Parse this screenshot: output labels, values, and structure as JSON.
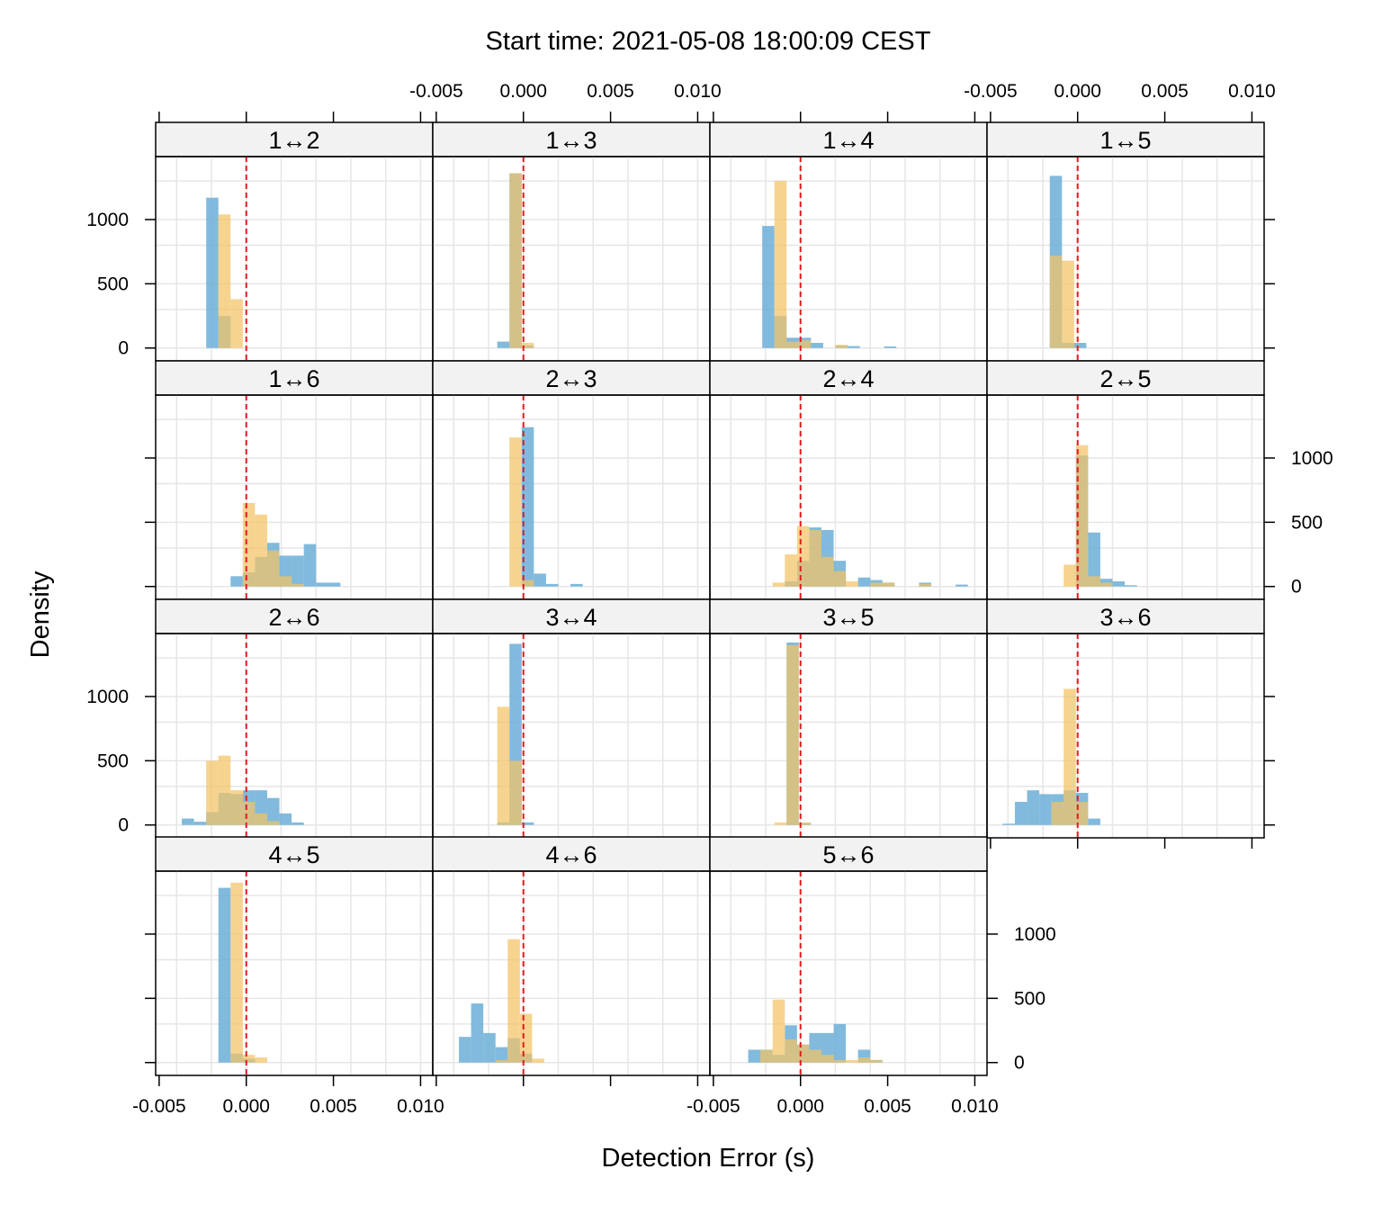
{
  "chart_data": {
    "type": "histogram-trellis",
    "title": "Start time: 2021-05-08 18:00:09 CEST",
    "xlabel": "Detection Error (s)",
    "ylabel": "Density",
    "xlim": [
      -0.0052,
      0.0107
    ],
    "ylim": [
      -100,
      1490
    ],
    "x_ticks": [
      -0.005,
      0.0,
      0.005,
      0.01
    ],
    "x_tick_labels": [
      "-0.005",
      "0.000",
      "0.005",
      "0.010"
    ],
    "y_ticks": [
      0,
      500,
      1000
    ],
    "y_tick_labels": [
      "0",
      "500",
      "1000"
    ],
    "x_grid": [
      -0.004,
      -0.002,
      0.0,
      0.002,
      0.004,
      0.006,
      0.008,
      0.01
    ],
    "y_grid": [
      0,
      300,
      500,
      800,
      1000,
      1300
    ],
    "reference_line_x": 0.0,
    "grid": true,
    "colors": {
      "series_a": "#6baed6",
      "series_b": "#f3c365",
      "reference_line": "#e41a1c",
      "grid": "#e6e6e6",
      "strip_bg": "#f2f2f2"
    },
    "panels": [
      {
        "label": "1↔2",
        "binwidth": 0.0007,
        "a": [
          [
            -0.0023,
            1170
          ],
          [
            -0.0016,
            250
          ]
        ],
        "b": [
          [
            -0.0016,
            1040
          ],
          [
            -0.0009,
            380
          ]
        ]
      },
      {
        "label": "1↔3",
        "binwidth": 0.0007,
        "a": [
          [
            -0.0015,
            50
          ],
          [
            -0.0008,
            1360
          ],
          [
            -0.0001,
            20
          ]
        ],
        "b": [
          [
            -0.0008,
            1360
          ],
          [
            -0.0001,
            40
          ]
        ]
      },
      {
        "label": "1↔4",
        "binwidth": 0.0007,
        "a": [
          [
            -0.0022,
            950
          ],
          [
            -0.0015,
            250
          ],
          [
            -0.0008,
            80
          ],
          [
            -0.0001,
            80
          ],
          [
            0.0006,
            40
          ],
          [
            0.002,
            20
          ],
          [
            0.0027,
            15
          ],
          [
            0.0048,
            12
          ]
        ],
        "b": [
          [
            -0.0015,
            1300
          ],
          [
            -0.0008,
            50
          ],
          [
            -0.0001,
            60
          ],
          [
            0.002,
            25
          ]
        ]
      },
      {
        "label": "1↔5",
        "binwidth": 0.0007,
        "a": [
          [
            -0.0016,
            1340
          ],
          [
            -0.0009,
            40
          ],
          [
            -0.0002,
            40
          ]
        ],
        "b": [
          [
            -0.0016,
            720
          ],
          [
            -0.0009,
            680
          ]
        ]
      },
      {
        "label": "1↔6",
        "binwidth": 0.0007,
        "a": [
          [
            -0.0009,
            80
          ],
          [
            -0.0002,
            110
          ],
          [
            0.0005,
            230
          ],
          [
            0.0012,
            340
          ],
          [
            0.0019,
            240
          ],
          [
            0.0026,
            240
          ],
          [
            0.0033,
            330
          ],
          [
            0.004,
            30
          ],
          [
            0.0047,
            30
          ]
        ],
        "b": [
          [
            -0.0002,
            650
          ],
          [
            0.0005,
            560
          ],
          [
            0.0012,
            280
          ],
          [
            0.0019,
            80
          ],
          [
            0.0026,
            20
          ]
        ]
      },
      {
        "label": "2↔3",
        "binwidth": 0.0007,
        "a": [
          [
            -0.0001,
            1240
          ],
          [
            0.0006,
            100
          ],
          [
            0.0013,
            20
          ],
          [
            0.0027,
            20
          ]
        ],
        "b": [
          [
            -0.0008,
            1160
          ],
          [
            -0.0001,
            50
          ]
        ]
      },
      {
        "label": "2↔4",
        "binwidth": 0.0007,
        "a": [
          [
            -0.0009,
            40
          ],
          [
            -0.0002,
            200
          ],
          [
            0.0005,
            460
          ],
          [
            0.0012,
            440
          ],
          [
            0.0019,
            200
          ],
          [
            0.0033,
            70
          ],
          [
            0.004,
            50
          ],
          [
            0.0047,
            30
          ],
          [
            0.0068,
            30
          ],
          [
            0.0089,
            15
          ]
        ],
        "b": [
          [
            -0.0016,
            30
          ],
          [
            -0.0009,
            250
          ],
          [
            -0.0002,
            470
          ],
          [
            0.0005,
            440
          ],
          [
            0.0012,
            230
          ],
          [
            0.0019,
            120
          ],
          [
            0.0026,
            40
          ],
          [
            0.004,
            30
          ],
          [
            0.0047,
            30
          ],
          [
            0.0068,
            20
          ]
        ]
      },
      {
        "label": "2↔5",
        "binwidth": 0.0007,
        "a": [
          [
            -0.0001,
            1020
          ],
          [
            0.0006,
            420
          ],
          [
            0.0013,
            60
          ],
          [
            0.002,
            40
          ],
          [
            0.0027,
            10
          ]
        ],
        "b": [
          [
            -0.0008,
            170
          ],
          [
            -0.0001,
            1100
          ],
          [
            0.0006,
            80
          ],
          [
            0.0013,
            30
          ]
        ]
      },
      {
        "label": "2↔6",
        "binwidth": 0.0007,
        "a": [
          [
            -0.0037,
            50
          ],
          [
            -0.003,
            25
          ],
          [
            -0.0023,
            100
          ],
          [
            -0.0016,
            250
          ],
          [
            -0.0009,
            240
          ],
          [
            -0.0002,
            270
          ],
          [
            0.0005,
            270
          ],
          [
            0.0012,
            210
          ],
          [
            0.0019,
            90
          ],
          [
            0.0026,
            20
          ]
        ],
        "b": [
          [
            -0.0023,
            500
          ],
          [
            -0.0016,
            540
          ],
          [
            -0.0009,
            270
          ],
          [
            -0.0002,
            180
          ],
          [
            0.0005,
            90
          ],
          [
            0.0012,
            30
          ]
        ]
      },
      {
        "label": "3↔4",
        "binwidth": 0.0007,
        "a": [
          [
            -0.0015,
            20
          ],
          [
            -0.0008,
            1410
          ],
          [
            -0.0001,
            20
          ]
        ],
        "b": [
          [
            -0.0015,
            920
          ],
          [
            -0.0008,
            500
          ]
        ]
      },
      {
        "label": "3↔5",
        "binwidth": 0.0007,
        "a": [
          [
            -0.0008,
            1420
          ],
          [
            -0.0001,
            15
          ]
        ],
        "b": [
          [
            -0.0015,
            20
          ],
          [
            -0.0008,
            1400
          ],
          [
            -0.0001,
            20
          ]
        ]
      },
      {
        "label": "3↔6",
        "binwidth": 0.0007,
        "a": [
          [
            -0.0043,
            10
          ],
          [
            -0.0036,
            180
          ],
          [
            -0.0029,
            270
          ],
          [
            -0.0022,
            240
          ],
          [
            -0.0015,
            240
          ],
          [
            -0.0008,
            270
          ],
          [
            -0.0001,
            250
          ],
          [
            0.0006,
            50
          ]
        ],
        "b": [
          [
            -0.0015,
            180
          ],
          [
            -0.0008,
            1060
          ],
          [
            -0.0001,
            180
          ]
        ]
      },
      {
        "label": "4↔5",
        "binwidth": 0.0007,
        "a": [
          [
            -0.0016,
            1360
          ],
          [
            -0.0009,
            70
          ],
          [
            -0.0002,
            30
          ]
        ],
        "b": [
          [
            -0.0009,
            1400
          ],
          [
            -0.0002,
            60
          ],
          [
            0.0005,
            40
          ]
        ]
      },
      {
        "label": "4↔6",
        "binwidth": 0.0007,
        "a": [
          [
            -0.0037,
            200
          ],
          [
            -0.003,
            460
          ],
          [
            -0.0023,
            230
          ],
          [
            -0.0016,
            120
          ],
          [
            -0.0009,
            190
          ],
          [
            -0.0002,
            70
          ]
        ],
        "b": [
          [
            -0.0016,
            20
          ],
          [
            -0.0009,
            960
          ],
          [
            -0.0002,
            380
          ],
          [
            0.0005,
            30
          ]
        ]
      },
      {
        "label": "5↔6",
        "binwidth": 0.0007,
        "a": [
          [
            -0.003,
            100
          ],
          [
            -0.0023,
            100
          ],
          [
            -0.0016,
            60
          ],
          [
            -0.0009,
            290
          ],
          [
            -0.0002,
            140
          ],
          [
            0.0005,
            230
          ],
          [
            0.0012,
            230
          ],
          [
            0.0019,
            300
          ],
          [
            0.0033,
            100
          ],
          [
            0.004,
            20
          ]
        ],
        "b": [
          [
            -0.0023,
            100
          ],
          [
            -0.0016,
            490
          ],
          [
            -0.0009,
            180
          ],
          [
            -0.0002,
            140
          ],
          [
            0.0005,
            100
          ],
          [
            0.0012,
            60
          ],
          [
            0.0019,
            20
          ],
          [
            0.0026,
            20
          ],
          [
            0.0033,
            40
          ],
          [
            0.004,
            20
          ]
        ]
      }
    ]
  }
}
